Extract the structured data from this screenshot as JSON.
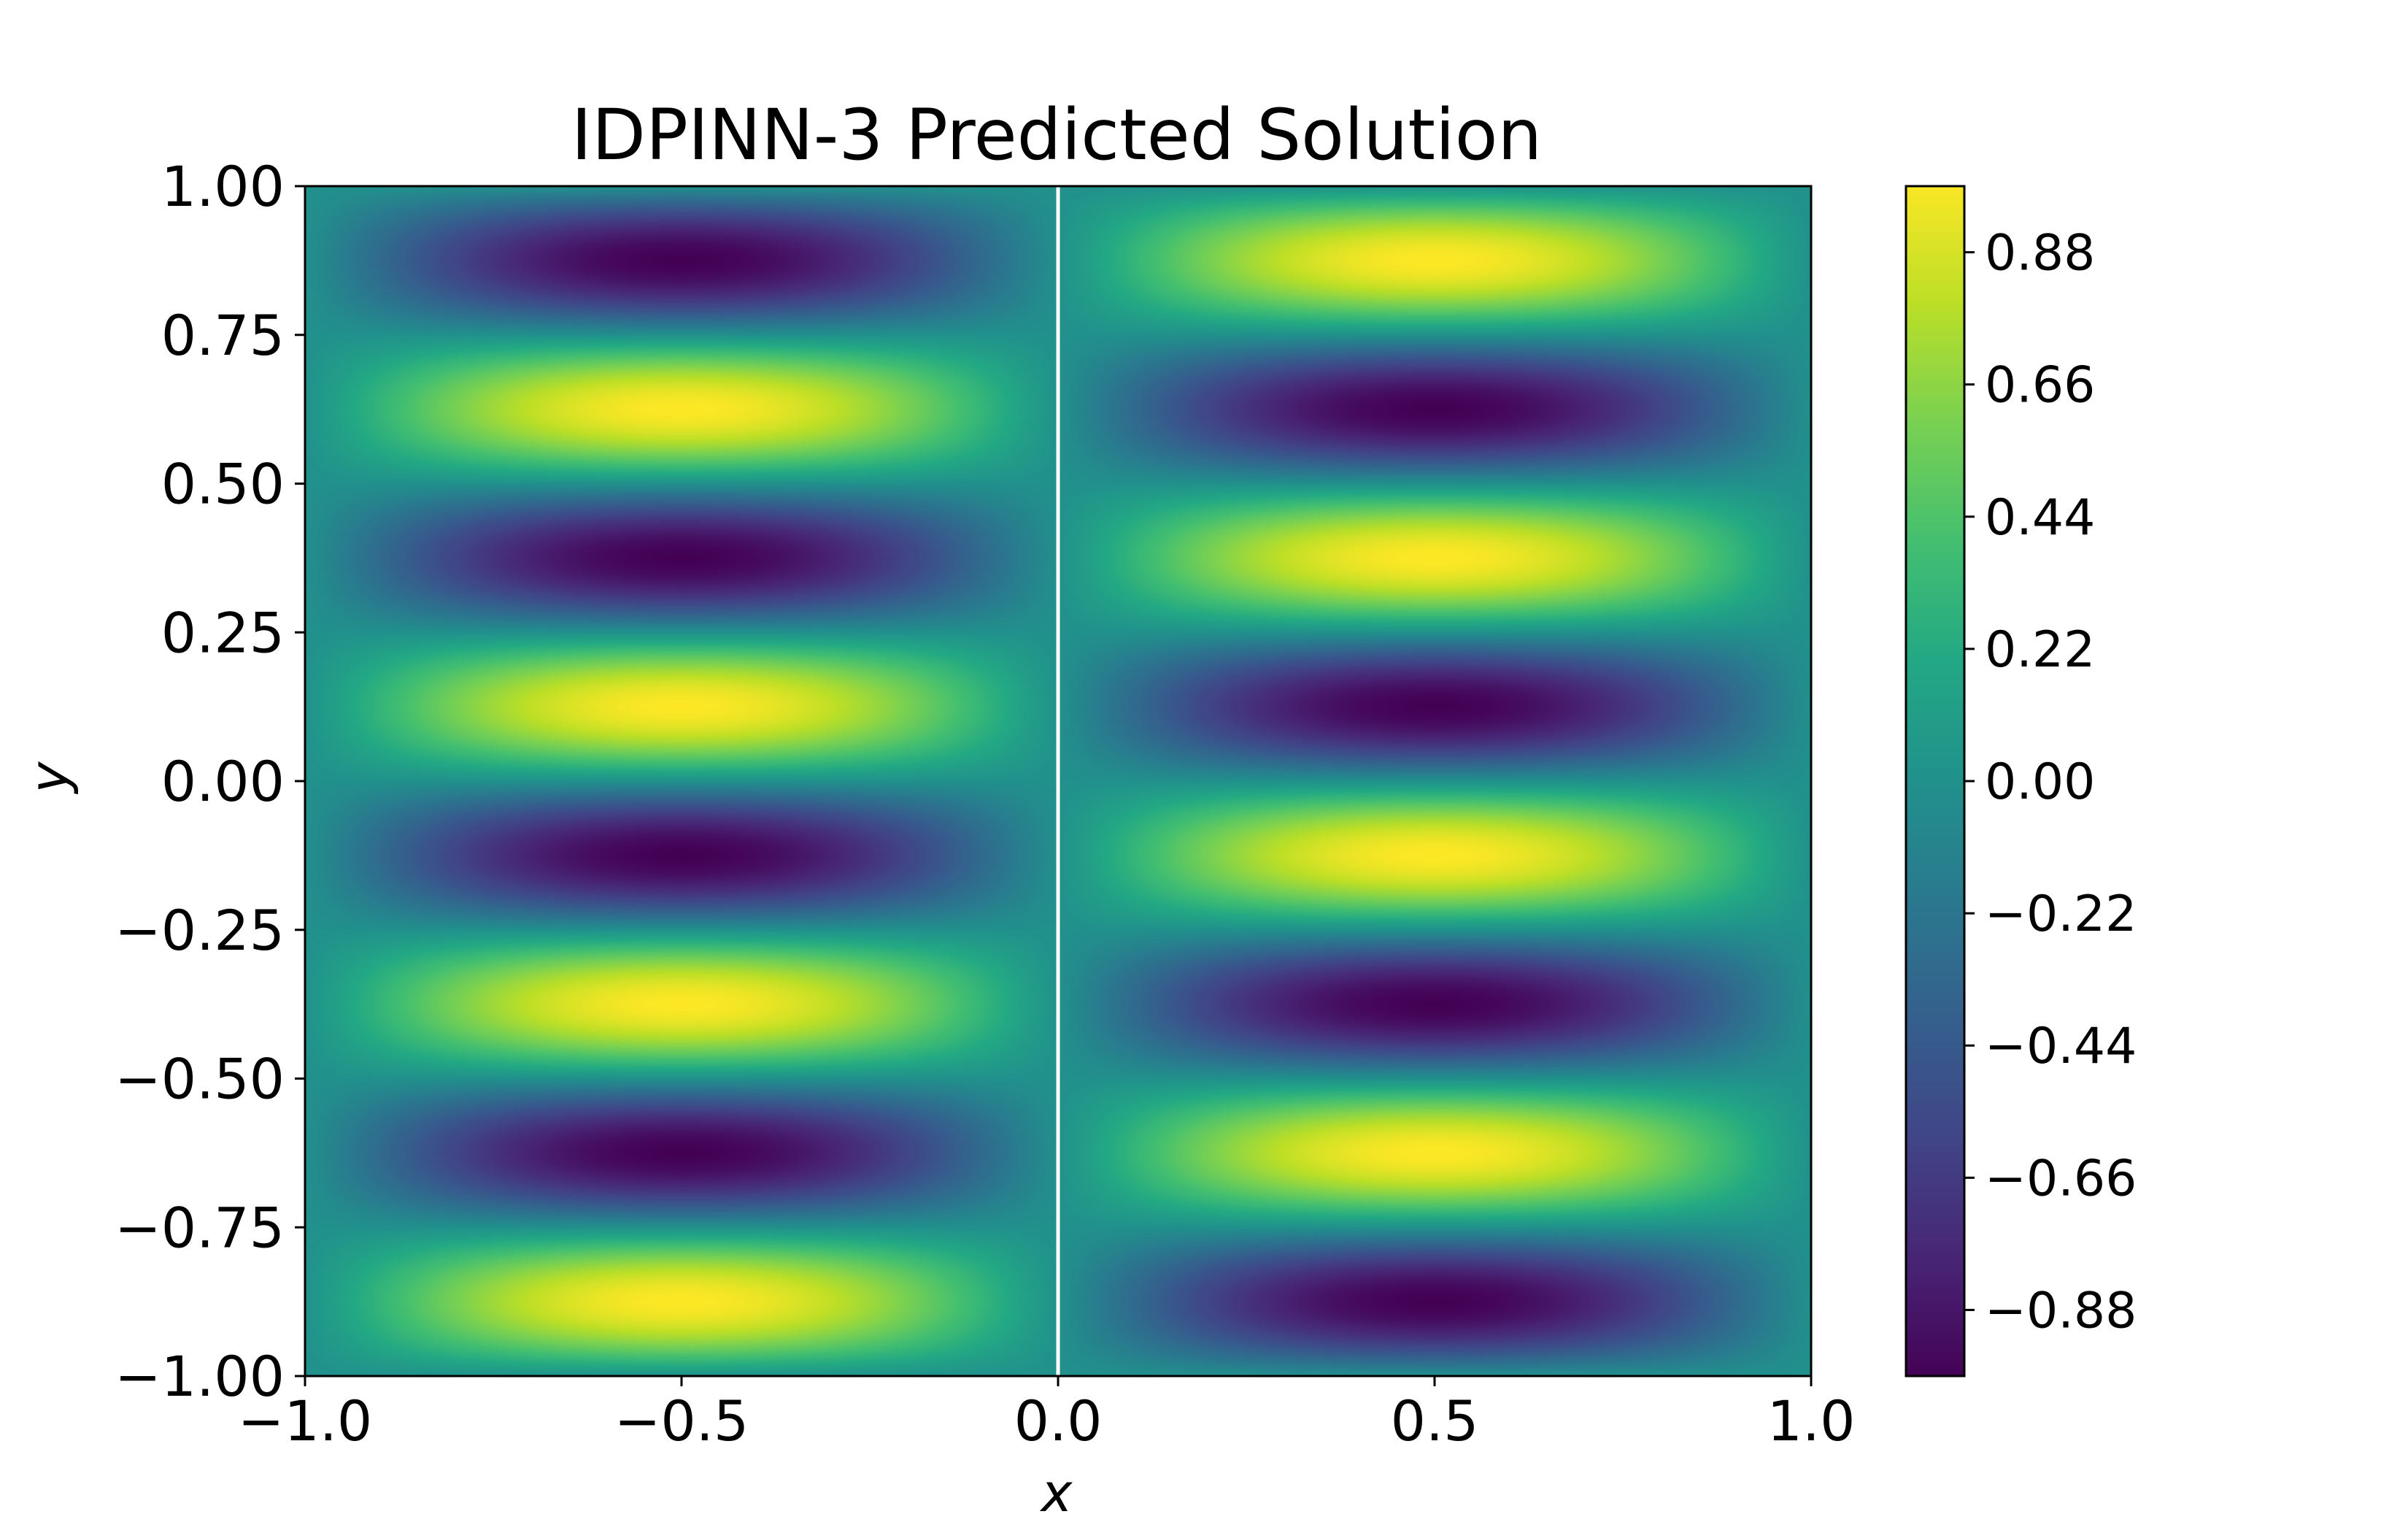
{
  "chart_data": {
    "type": "heatmap",
    "title": "IDPINN-3 Predicted Solution",
    "xlabel": "x",
    "ylabel": "y",
    "xlim": [
      -1.0,
      1.0
    ],
    "ylim": [
      -1.0,
      1.0
    ],
    "x_ticks": [
      -1.0,
      -0.5,
      0.0,
      0.5,
      1.0
    ],
    "x_tick_labels": [
      "−1.0",
      "−0.5",
      "0.0",
      "0.5",
      "1.0"
    ],
    "y_ticks": [
      1.0,
      0.75,
      0.5,
      0.25,
      0.0,
      -0.25,
      -0.5,
      -0.75,
      -1.0
    ],
    "y_tick_labels": [
      "1.00",
      "0.75",
      "0.50",
      "0.25",
      "0.00",
      "−0.25",
      "−0.50",
      "−0.75",
      "−1.00"
    ],
    "function": "u(x, y) = -sin(pi*x) * sin(4*pi*y)",
    "value_range": [
      -1.0,
      1.0
    ],
    "interface_line_x": 0.0,
    "interface_line_color": "#ffffff",
    "colormap": "viridis",
    "colorbar": {
      "range": [
        -0.99,
        0.99
      ],
      "ticks": [
        0.88,
        0.66,
        0.44,
        0.22,
        0.0,
        -0.22,
        -0.44,
        -0.66,
        -0.88
      ],
      "tick_labels": [
        "0.88",
        "0.66",
        "0.44",
        "0.22",
        "0.00",
        "−0.22",
        "−0.44",
        "−0.66",
        "−0.88"
      ]
    },
    "grid": false,
    "legend": "none"
  }
}
